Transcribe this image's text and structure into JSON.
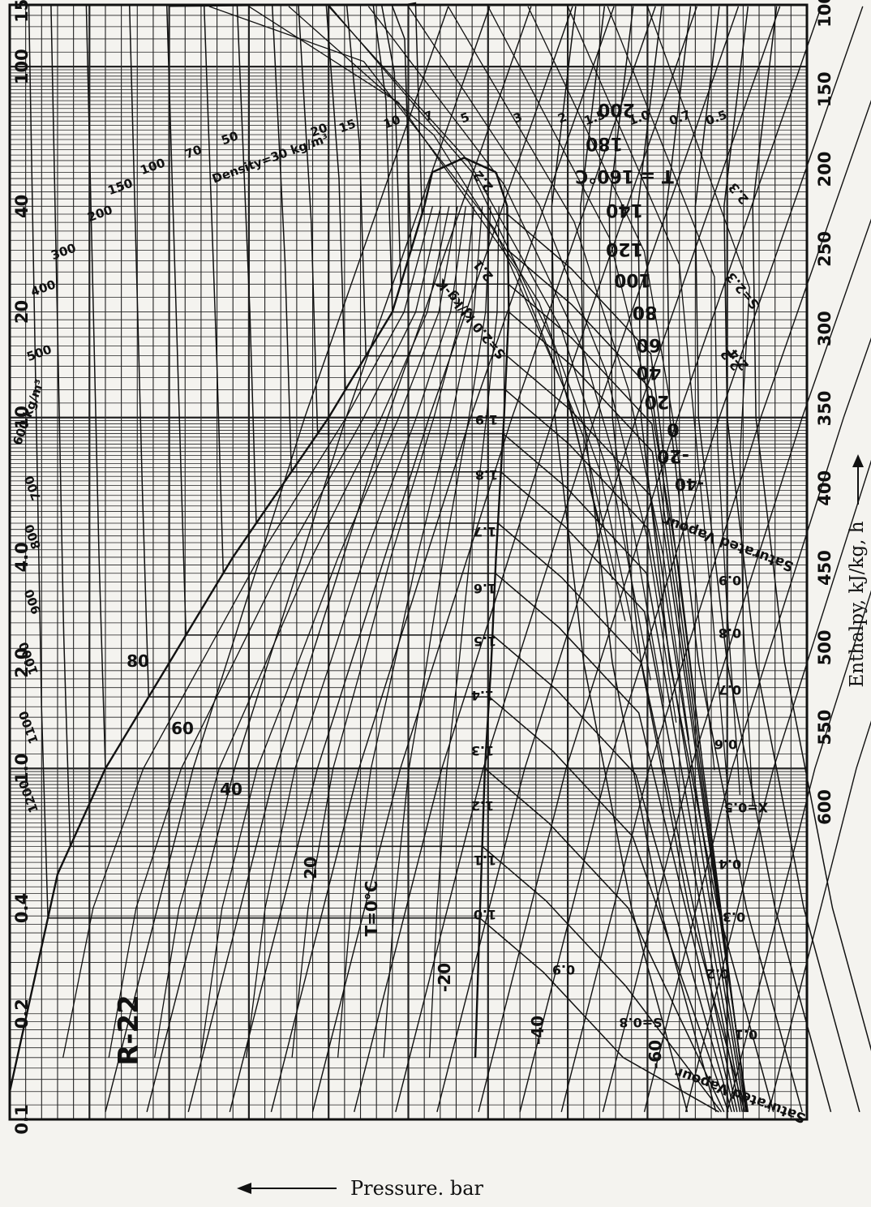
{
  "chart_data": {
    "type": "line",
    "title": "R-22",
    "xlabel": "Pressure. bar",
    "ylabel": "Enthalpy, kJ/kg, h",
    "x_axis": {
      "scale": "log",
      "range": [
        0.1,
        150
      ],
      "tick_labels": [
        "150",
        "100",
        "40",
        "20",
        "10",
        "4.0",
        "2.0",
        "1.0",
        "0.4",
        "0.2",
        "0.1"
      ],
      "tick_values": [
        150,
        100,
        40,
        20,
        10,
        4,
        2,
        1,
        0.4,
        0.2,
        0.1
      ],
      "arrow": "left"
    },
    "y_axis": {
      "scale": "linear",
      "range": [
        100,
        600
      ],
      "tick_labels": [
        "100",
        "150",
        "200",
        "250",
        "300",
        "350",
        "400",
        "450",
        "500",
        "550",
        "600"
      ],
      "tick_values": [
        100,
        150,
        200,
        250,
        300,
        350,
        400,
        450,
        500,
        550,
        600
      ],
      "arrow": "up"
    },
    "grid": true,
    "series": [
      {
        "name": "Saturated Vapour",
        "values": [
          [
            0.12,
            100
          ],
          [
            0.5,
            130
          ],
          [
            1.0,
            160
          ],
          [
            2.0,
            200
          ],
          [
            4.0,
            240
          ],
          [
            10,
            300
          ],
          [
            20,
            340
          ],
          [
            40,
            360
          ],
          [
            50,
            365
          ]
        ]
      },
      {
        "name": "Saturated Vapour",
        "values": [
          [
            0.15,
            392
          ],
          [
            0.4,
            395
          ],
          [
            1.0,
            398
          ],
          [
            2.0,
            402
          ],
          [
            4.0,
            405
          ],
          [
            10,
            410
          ],
          [
            20,
            413
          ],
          [
            40,
            412
          ],
          [
            50,
            405
          ]
        ]
      }
    ],
    "isotherm_labels": [
      "-60",
      "-40",
      "-20",
      "T=0°C",
      "20",
      "40",
      "60",
      "80",
      "-40",
      "-20",
      "0",
      "20",
      "40",
      "60",
      "80",
      "100",
      "120",
      "140",
      "T = 160°C",
      "180",
      "200"
    ],
    "entropy_labels": [
      "S=0.8",
      "0.9",
      "1.0",
      "1.1",
      "1.2",
      "1.3",
      "1.4",
      "1.5",
      "1.6",
      "1.7",
      "1.8",
      "1.9",
      "S=2.0 kJ/kg-K",
      "2.1",
      "2.2",
      "2.3",
      "2.4",
      "S=2.3",
      "2.2"
    ],
    "quality_labels": [
      "0.1",
      "0.2",
      "0.3",
      "0.4",
      "X=0.5",
      "0.6",
      "0.7",
      "0.8",
      "0.9"
    ],
    "density_labels": [
      "1200",
      "1100",
      "1000",
      "900",
      "800",
      "700",
      "600 kg/m³",
      "500",
      "400",
      "300",
      "200",
      "150",
      "100",
      "70",
      "50",
      "Density=30 kg/m³",
      "20",
      "15",
      "10",
      "7",
      "5",
      "3",
      "2",
      "1.5",
      "1.0",
      "0.7",
      "0.5"
    ]
  }
}
